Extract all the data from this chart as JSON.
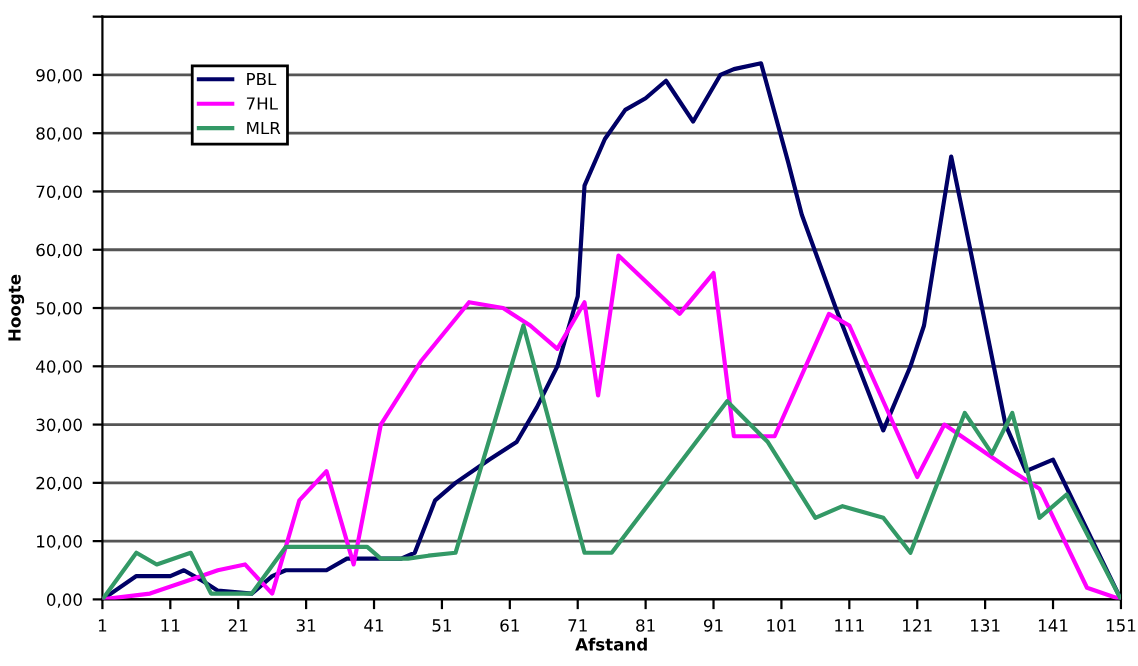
{
  "chart_data": {
    "type": "line",
    "xlabel": "Afstand",
    "ylabel": "Hoogte",
    "xlim": [
      1,
      151
    ],
    "xticks": [
      1,
      11,
      21,
      31,
      41,
      51,
      61,
      71,
      81,
      91,
      101,
      111,
      121,
      131,
      141,
      151
    ],
    "ylim": [
      0,
      100
    ],
    "yticks": [
      {
        "value": 0,
        "label": "0,00"
      },
      {
        "value": 10,
        "label": "10,00"
      },
      {
        "value": 20,
        "label": "20,00"
      },
      {
        "value": 30,
        "label": "30,00"
      },
      {
        "value": 40,
        "label": "40,00"
      },
      {
        "value": 50,
        "label": "50,00"
      },
      {
        "value": 60,
        "label": "60,00"
      },
      {
        "value": 70,
        "label": "70,00"
      },
      {
        "value": 80,
        "label": "80,00"
      },
      {
        "value": 90,
        "label": "90,00"
      },
      {
        "value": 100,
        "label": null
      }
    ],
    "grid": "y",
    "legend": "top left",
    "marker": "none",
    "line_style": "solid",
    "series": [
      {
        "name": "PBL",
        "color": "#000066",
        "x": [
          1,
          6,
          11,
          13,
          16,
          18,
          23,
          26,
          28,
          34,
          37,
          45,
          47,
          50,
          53,
          58,
          62,
          65,
          68,
          71,
          72,
          75,
          78,
          81,
          84,
          88,
          92,
          94,
          98,
          102,
          104,
          109,
          116,
          120,
          122,
          126,
          129,
          134,
          137,
          141,
          151
        ],
        "values": [
          0,
          4,
          4,
          5,
          3,
          1.5,
          1,
          4,
          5,
          5,
          7,
          7,
          8,
          17,
          20,
          24,
          27,
          33,
          40,
          52,
          71,
          79,
          84,
          86,
          89,
          82,
          90,
          91,
          92,
          75,
          66,
          50,
          29,
          40,
          47,
          76,
          59,
          30,
          22,
          24,
          0
        ]
      },
      {
        "name": "7HL",
        "color": "#ff00ff",
        "x": [
          1,
          8,
          13,
          18,
          22,
          26,
          30,
          34,
          38,
          42,
          48,
          55,
          60,
          64,
          68,
          72,
          74,
          77,
          86,
          91,
          94,
          100,
          108,
          111,
          121,
          125,
          135,
          139,
          146,
          151
        ],
        "values": [
          0,
          1,
          3,
          5,
          6,
          1,
          17,
          22,
          6,
          30,
          41,
          51,
          50,
          47,
          43,
          51,
          35,
          59,
          49,
          56,
          28,
          28,
          49,
          47,
          21,
          30,
          22,
          19,
          2,
          0
        ]
      },
      {
        "name": "MLR",
        "color": "#339966",
        "x": [
          1,
          6,
          9,
          14,
          17,
          23,
          28,
          40,
          42,
          46,
          49,
          53,
          63,
          72,
          76,
          93,
          99,
          106,
          110,
          116,
          120,
          128,
          132,
          135,
          139,
          143,
          151
        ],
        "values": [
          0,
          8,
          6,
          8,
          1,
          1,
          9,
          9,
          7,
          7,
          7.5,
          8,
          47,
          8,
          8,
          34,
          27,
          14,
          16,
          14,
          8,
          32,
          25,
          32,
          14,
          18,
          0
        ]
      }
    ]
  }
}
